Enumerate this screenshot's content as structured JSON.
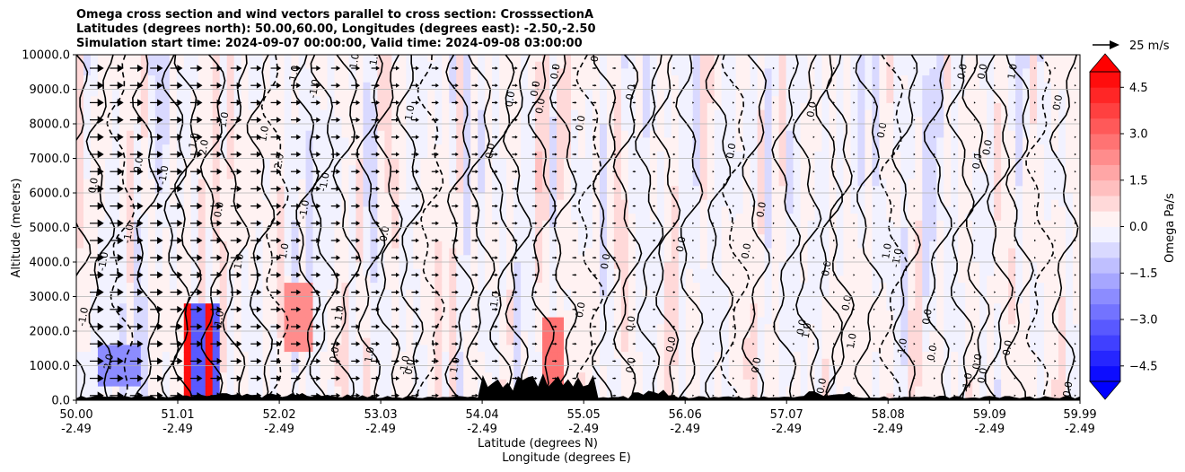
{
  "title_lines": [
    "Omega cross section and wind vectors parallel to cross section: CrosssectionA",
    "Latitudes (degrees north): 50.00,60.00, Longitudes (degrees east): -2.50,-2.50",
    "Simulation start time: 2024-09-07 00:00:00, Valid time: 2024-09-08 03:00:00"
  ],
  "chart_data": {
    "type": "heatmap",
    "subtype": "cross-section contour with wind vectors",
    "ylabel": "Altitude (meters)",
    "xlabel_line1": "Latitude (degrees N)",
    "xlabel_line2": "Longitude (degrees E)",
    "xlim": [
      50.0,
      59.99
    ],
    "ylim": [
      0,
      10000
    ],
    "x_ticks": [
      {
        "lat": "50.00",
        "lon": "-2.49",
        "value": 50.0
      },
      {
        "lat": "51.01",
        "lon": "-2.49",
        "value": 51.01
      },
      {
        "lat": "52.02",
        "lon": "-2.49",
        "value": 52.02
      },
      {
        "lat": "53.03",
        "lon": "-2.49",
        "value": 53.03
      },
      {
        "lat": "54.04",
        "lon": "-2.49",
        "value": 54.04
      },
      {
        "lat": "55.05",
        "lon": "-2.49",
        "value": 55.05
      },
      {
        "lat": "56.06",
        "lon": "-2.49",
        "value": 56.06
      },
      {
        "lat": "57.07",
        "lon": "-2.49",
        "value": 57.07
      },
      {
        "lat": "58.08",
        "lon": "-2.49",
        "value": 58.08
      },
      {
        "lat": "59.09",
        "lon": "-2.49",
        "value": 59.09
      },
      {
        "lat": "59.99",
        "lon": "-2.49",
        "value": 59.99
      }
    ],
    "y_ticks": [
      {
        "label": "10000.0",
        "value": 10000
      },
      {
        "label": "9000.0",
        "value": 9000
      },
      {
        "label": "8000.0",
        "value": 8000
      },
      {
        "label": "7000.0",
        "value": 7000
      },
      {
        "label": "6000.0",
        "value": 6000
      },
      {
        "label": "5000.0",
        "value": 5000
      },
      {
        "label": "4000.0",
        "value": 4000
      },
      {
        "label": "3000.0",
        "value": 3000
      },
      {
        "label": "2000.0",
        "value": 2000
      },
      {
        "label": "1000.0",
        "value": 1000
      },
      {
        "label": "0.0",
        "value": 0
      }
    ],
    "grid": "horizontal",
    "colorbar": {
      "label": "Omega Pa/s",
      "range": [
        -5.0,
        5.0
      ],
      "levels": [
        -5.0,
        -4.5,
        -4.0,
        -3.5,
        -3.0,
        -2.5,
        -2.0,
        -1.5,
        -1.0,
        -0.5,
        0.0,
        0.5,
        1.0,
        1.5,
        2.0,
        2.5,
        3.0,
        3.5,
        4.0,
        4.5,
        5.0
      ],
      "ticks": [
        {
          "label": "4.5",
          "value": 4.5
        },
        {
          "label": "3.0",
          "value": 3.0
        },
        {
          "label": "1.5",
          "value": 1.5
        },
        {
          "label": "0.0",
          "value": 0.0
        },
        {
          "label": "−1.5",
          "value": -1.5
        },
        {
          "label": "−3.0",
          "value": -3.0
        },
        {
          "label": "−4.5",
          "value": -4.5
        }
      ],
      "colormap": "bwr",
      "extend": "both"
    },
    "quiver_key": {
      "label": "25 m/s",
      "speed": 25
    },
    "contour_labels": [
      {
        "text": "1.0",
        "x": 51.2,
        "y": 7500
      },
      {
        "text": "1.0",
        "x": 51.9,
        "y": 7700
      },
      {
        "text": "2.0",
        "x": 51.3,
        "y": 7300
      },
      {
        "text": "1.0",
        "x": 51.5,
        "y": 8100
      },
      {
        "text": "1.0",
        "x": 52.2,
        "y": 9450
      },
      {
        "text": "2.0",
        "x": 52.05,
        "y": 6900
      },
      {
        "text": "1.0",
        "x": 52.8,
        "y": 9800
      },
      {
        "text": "1.0",
        "x": 53.0,
        "y": 9900
      },
      {
        "text": "-1.0",
        "x": 52.4,
        "y": 9000
      },
      {
        "text": "1.0",
        "x": 53.35,
        "y": 8300
      },
      {
        "text": "0.0",
        "x": 50.2,
        "y": 6200
      },
      {
        "text": "0.0",
        "x": 50.65,
        "y": 6800
      },
      {
        "text": "-1.0",
        "x": 50.9,
        "y": 6500
      },
      {
        "text": "0.0",
        "x": 51.45,
        "y": 5500
      },
      {
        "text": "-1.0",
        "x": 50.55,
        "y": 4800
      },
      {
        "text": "-1.0",
        "x": 50.3,
        "y": 4000
      },
      {
        "text": "-1.0",
        "x": 52.3,
        "y": 5500
      },
      {
        "text": "-1.0",
        "x": 52.5,
        "y": 6300
      },
      {
        "text": "1.0",
        "x": 51.65,
        "y": 4000
      },
      {
        "text": "1.0",
        "x": 52.1,
        "y": 4300
      },
      {
        "text": "1.0",
        "x": 52.65,
        "y": 2500
      },
      {
        "text": "-1.0",
        "x": 51.45,
        "y": 2300
      },
      {
        "text": "-1.0",
        "x": 50.1,
        "y": 2400
      },
      {
        "text": "-2.0",
        "x": 50.35,
        "y": 1050
      },
      {
        "text": "0.0",
        "x": 53.1,
        "y": 4800
      },
      {
        "text": "0.0",
        "x": 52.6,
        "y": 1300
      },
      {
        "text": "1.0",
        "x": 52.95,
        "y": 1300
      },
      {
        "text": "0.0",
        "x": 53.35,
        "y": 950
      },
      {
        "text": "-1.0",
        "x": 53.3,
        "y": 1000
      },
      {
        "text": "1.0",
        "x": 53.8,
        "y": 1000
      },
      {
        "text": "1.0",
        "x": 54.2,
        "y": 2900
      },
      {
        "text": "0.0",
        "x": 54.15,
        "y": 7200
      },
      {
        "text": "0.0",
        "x": 54.35,
        "y": 8700
      },
      {
        "text": "0.0",
        "x": 54.6,
        "y": 9000
      },
      {
        "text": "0.0",
        "x": 54.65,
        "y": 8500
      },
      {
        "text": "0.0",
        "x": 54.8,
        "y": 9500
      },
      {
        "text": "0.0",
        "x": 55.2,
        "y": 10000
      },
      {
        "text": "0.0",
        "x": 55.05,
        "y": 8000
      },
      {
        "text": "0.0",
        "x": 55.55,
        "y": 8900
      },
      {
        "text": "0.0",
        "x": 55.3,
        "y": 4000
      },
      {
        "text": "0.0",
        "x": 55.05,
        "y": 2600
      },
      {
        "text": "0.0",
        "x": 55.55,
        "y": 2200
      },
      {
        "text": "0.0",
        "x": 55.55,
        "y": 1000
      },
      {
        "text": "0.0",
        "x": 55.95,
        "y": 1600
      },
      {
        "text": "0.0",
        "x": 56.05,
        "y": 4500
      },
      {
        "text": "0.0",
        "x": 56.55,
        "y": 7200
      },
      {
        "text": "0.0",
        "x": 56.85,
        "y": 5500
      },
      {
        "text": "0.0",
        "x": 57.35,
        "y": 8400
      },
      {
        "text": "0.0",
        "x": 57.5,
        "y": 3800
      },
      {
        "text": "0.0",
        "x": 57.7,
        "y": 2800
      },
      {
        "text": "1.0",
        "x": 57.3,
        "y": 2000
      },
      {
        "text": "1.0",
        "x": 57.75,
        "y": 1700
      },
      {
        "text": "0.0",
        "x": 57.25,
        "y": 2100
      },
      {
        "text": "0.0",
        "x": 57.45,
        "y": 400
      },
      {
        "text": "0.0",
        "x": 58.05,
        "y": 7800
      },
      {
        "text": "-1.0",
        "x": 58.2,
        "y": 4100
      },
      {
        "text": "1.0",
        "x": 58.1,
        "y": 4300
      },
      {
        "text": "0.0",
        "x": 58.5,
        "y": 2400
      },
      {
        "text": "-1.0",
        "x": 58.25,
        "y": 1500
      },
      {
        "text": "0.0",
        "x": 58.55,
        "y": 1350
      },
      {
        "text": "0.0",
        "x": 59.0,
        "y": 6900
      },
      {
        "text": "0.0",
        "x": 59.1,
        "y": 7300
      },
      {
        "text": "0.0",
        "x": 58.85,
        "y": 9500
      },
      {
        "text": "0.0",
        "x": 59.05,
        "y": 9500
      },
      {
        "text": "1.0",
        "x": 59.35,
        "y": 9500
      },
      {
        "text": "0.0",
        "x": 59.8,
        "y": 8600
      },
      {
        "text": "0.0",
        "x": 59.3,
        "y": 1500
      },
      {
        "text": "0.0",
        "x": 59.05,
        "y": 700
      },
      {
        "text": "0.0",
        "x": 59.0,
        "y": 1100
      },
      {
        "text": "-1.0",
        "x": 58.9,
        "y": 500
      },
      {
        "text": "0.0",
        "x": 59.9,
        "y": 300
      },
      {
        "text": "0.0",
        "x": 56.7,
        "y": 4300
      },
      {
        "text": "0.0",
        "x": 56.8,
        "y": 1000
      }
    ]
  }
}
